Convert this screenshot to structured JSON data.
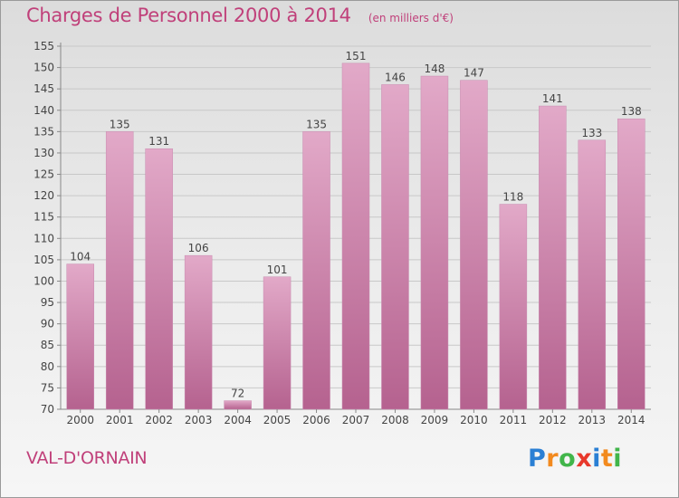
{
  "place": "VAL-D'ORNAIN",
  "logo": {
    "letters": [
      "P",
      "r",
      "o",
      "x",
      "i",
      "t",
      "i"
    ],
    "colors": [
      "#2a7fd4",
      "#f28a1e",
      "#41b54a",
      "#e8382b",
      "#2a7fd4",
      "#f28a1e",
      "#41b54a"
    ]
  },
  "colors": {
    "bar_top": "#e2a9c8",
    "bar_bottom": "#b5628f",
    "title": "#c0407a"
  },
  "chart_data": {
    "type": "bar",
    "title": "Charges de Personnel 2000 à 2014",
    "subtitle": "(en milliers d'€)",
    "categories": [
      "2000",
      "2001",
      "2002",
      "2003",
      "2004",
      "2005",
      "2006",
      "2007",
      "2008",
      "2009",
      "2010",
      "2011",
      "2012",
      "2013",
      "2014"
    ],
    "values": [
      104,
      135,
      131,
      106,
      72,
      101,
      135,
      151,
      146,
      148,
      147,
      118,
      141,
      133,
      138
    ],
    "ylim": [
      70,
      155
    ],
    "yticks": [
      70,
      75,
      80,
      85,
      90,
      95,
      100,
      105,
      110,
      115,
      120,
      125,
      130,
      135,
      140,
      145,
      150,
      155
    ],
    "grid": true,
    "legend": "none"
  }
}
